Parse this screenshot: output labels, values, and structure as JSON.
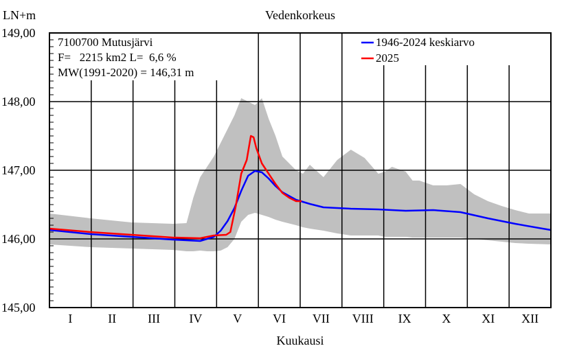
{
  "chart_data": {
    "type": "line",
    "title": "Vedenkorkeus",
    "ylabel": "LN+m",
    "xlabel": "Kuukausi",
    "ylim": [
      145,
      149
    ],
    "yticks": [
      "145,00",
      "146,00",
      "147,00",
      "148,00",
      "149,00"
    ],
    "months": [
      "I",
      "II",
      "III",
      "IV",
      "V",
      "VI",
      "VII",
      "VIII",
      "IX",
      "X",
      "XI",
      "XII"
    ],
    "info": {
      "station": "7100700 Mutusjärvi",
      "area": "F=   2215 km2 L=  6,6 %",
      "mw": "MW(1991-2020) = 146,31 m"
    },
    "legend_position": "top-right",
    "x_unit": "day of year",
    "series": [
      {
        "name": "1946-2024 keskiarvo",
        "color": "#0000ff",
        "x": [
          0,
          30,
          60,
          90,
          110,
          120,
          125,
          130,
          135,
          140,
          145,
          150,
          155,
          160,
          165,
          170,
          180,
          190,
          200,
          220,
          240,
          260,
          280,
          300,
          320,
          340,
          360,
          366
        ],
        "y": [
          146.13,
          146.07,
          146.03,
          145.99,
          145.97,
          146.03,
          146.12,
          146.26,
          146.45,
          146.7,
          146.92,
          146.99,
          146.97,
          146.88,
          146.77,
          146.68,
          146.57,
          146.51,
          146.46,
          146.44,
          146.43,
          146.41,
          146.42,
          146.39,
          146.3,
          146.22,
          146.15,
          146.13
        ]
      },
      {
        "name": "2025",
        "color": "#ff0000",
        "x": [
          0,
          30,
          60,
          90,
          110,
          120,
          129,
          132,
          136,
          140,
          144,
          147,
          149,
          151,
          155,
          160,
          165,
          170,
          175,
          180,
          184
        ],
        "y": [
          146.15,
          146.1,
          146.06,
          146.02,
          146.01,
          146.05,
          146.06,
          146.1,
          146.48,
          146.95,
          147.15,
          147.5,
          147.48,
          147.32,
          147.1,
          146.95,
          146.8,
          146.67,
          146.6,
          146.55,
          146.55
        ]
      }
    ],
    "range_band": {
      "color": "#c0c0c0",
      "x": [
        0,
        30,
        60,
        90,
        100,
        105,
        110,
        115,
        120,
        125,
        130,
        135,
        140,
        145,
        150,
        155,
        160,
        165,
        170,
        180,
        185,
        190,
        200,
        210,
        220,
        230,
        240,
        245,
        250,
        260,
        265,
        270,
        280,
        290,
        300,
        310,
        320,
        330,
        340,
        350,
        366
      ],
      "upper": [
        146.37,
        146.3,
        146.24,
        146.22,
        146.23,
        146.6,
        146.9,
        147.05,
        147.2,
        147.4,
        147.6,
        147.8,
        148.05,
        148.0,
        147.95,
        148.05,
        147.75,
        147.5,
        147.2,
        147.0,
        146.95,
        147.08,
        146.9,
        147.15,
        147.3,
        147.18,
        146.95,
        146.98,
        147.05,
        146.98,
        146.85,
        146.85,
        146.78,
        146.78,
        146.8,
        146.65,
        146.55,
        146.48,
        146.42,
        146.37,
        146.37
      ],
      "lower": [
        145.92,
        145.88,
        145.86,
        145.84,
        145.82,
        145.82,
        145.83,
        145.82,
        145.82,
        145.83,
        145.88,
        146.0,
        146.25,
        146.35,
        146.38,
        146.35,
        146.32,
        146.28,
        146.25,
        146.2,
        146.17,
        146.15,
        146.12,
        146.08,
        146.05,
        146.05,
        146.05,
        146.03,
        146.03,
        146.03,
        146.02,
        146.02,
        146.02,
        146.02,
        146.02,
        146.0,
        145.98,
        145.96,
        145.94,
        145.93,
        145.92
      ]
    }
  }
}
